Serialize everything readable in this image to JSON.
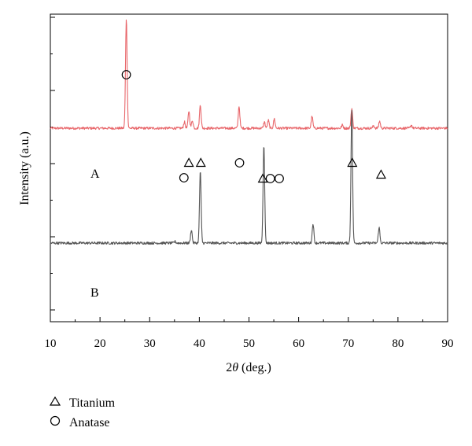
{
  "chart_data": {
    "type": "line",
    "title": "",
    "xlabel_prefix": "2",
    "xlabel_var": "θ",
    "xlabel_suffix": " (deg.)",
    "ylabel": "Intensity (a.u.)",
    "xlim": [
      10,
      90
    ],
    "xticks": [
      10,
      20,
      30,
      40,
      50,
      60,
      70,
      80,
      90
    ],
    "yticks_labeled": false,
    "grid": false,
    "series": [
      {
        "name": "A",
        "color": "#e8666a",
        "baseline": 246,
        "peaks": [
          {
            "x": 25.3,
            "h": 140
          },
          {
            "x": 37.0,
            "h": 8
          },
          {
            "x": 37.9,
            "h": 22
          },
          {
            "x": 38.6,
            "h": 10
          },
          {
            "x": 40.2,
            "h": 30
          },
          {
            "x": 48.0,
            "h": 28
          },
          {
            "x": 53.1,
            "h": 8
          },
          {
            "x": 53.9,
            "h": 10
          },
          {
            "x": 55.1,
            "h": 12
          },
          {
            "x": 62.7,
            "h": 15
          },
          {
            "x": 68.8,
            "h": 4
          },
          {
            "x": 70.7,
            "h": 25
          },
          {
            "x": 75.1,
            "h": 3
          },
          {
            "x": 76.3,
            "h": 9
          },
          {
            "x": 82.7,
            "h": 4
          }
        ]
      },
      {
        "name": "B",
        "color": "#555555",
        "baseline": 100,
        "peaks": [
          {
            "x": 35.1,
            "h": 2
          },
          {
            "x": 38.4,
            "h": 17
          },
          {
            "x": 40.2,
            "h": 92
          },
          {
            "x": 53.0,
            "h": 126
          },
          {
            "x": 62.9,
            "h": 25
          },
          {
            "x": 70.7,
            "h": 170
          },
          {
            "x": 76.2,
            "h": 20
          }
        ]
      }
    ],
    "annotations": [
      {
        "symbol": "circle",
        "x": 25.3,
        "y_level": 95
      },
      {
        "symbol": "circle",
        "x": 36.9,
        "y_level": 226
      },
      {
        "symbol": "triangle",
        "x": 37.9,
        "y_level": 207
      },
      {
        "symbol": "triangle",
        "x": 40.3,
        "y_level": 207
      },
      {
        "symbol": "circle",
        "x": 48.1,
        "y_level": 207
      },
      {
        "symbol": "triangle",
        "x": 52.8,
        "y_level": 227
      },
      {
        "symbol": "circle",
        "x": 54.3,
        "y_level": 227
      },
      {
        "symbol": "circle",
        "x": 56.1,
        "y_level": 227
      },
      {
        "symbol": "triangle",
        "x": 70.8,
        "y_level": 207
      },
      {
        "symbol": "triangle",
        "x": 76.6,
        "y_level": 222
      }
    ],
    "legend": {
      "placement": "bottom-left",
      "items": [
        {
          "symbol": "triangle",
          "label": "Titanium"
        },
        {
          "symbol": "circle",
          "label": "Anatase"
        }
      ]
    }
  }
}
